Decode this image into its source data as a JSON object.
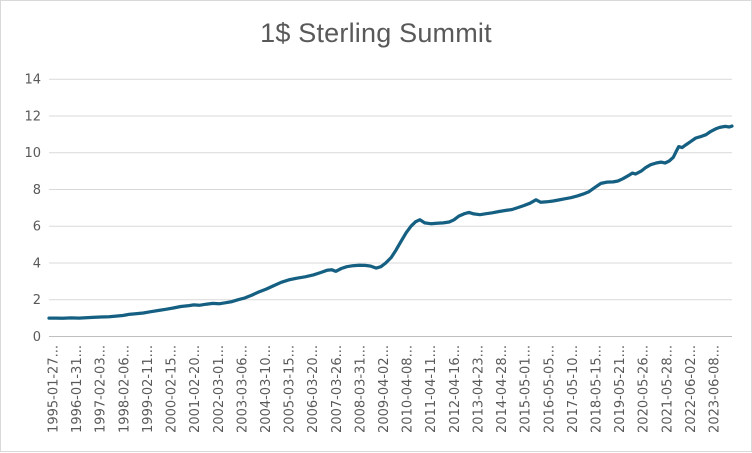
{
  "chart_data": {
    "type": "line",
    "title": "1$ Sterling Summit",
    "xlabel": "",
    "ylabel": "",
    "ylim": [
      0,
      14
    ],
    "y_ticks": [
      0,
      2,
      4,
      6,
      8,
      10,
      12,
      14
    ],
    "grid": "horizontal",
    "legend": "none",
    "x_tick_rotation": -90,
    "x_tick_labels": [
      "1995-01-27...",
      "1996-01-31...",
      "1997-02-03...",
      "1998-02-06...",
      "1999-02-11...",
      "2000-02-15...",
      "2001-02-20...",
      "2002-03-01...",
      "2003-03-06...",
      "2004-03-10...",
      "2005-03-15...",
      "2006-03-20...",
      "2007-03-26...",
      "2008-03-31...",
      "2009-04-02...",
      "2010-04-08...",
      "2011-04-11...",
      "2012-04-16...",
      "2013-04-23...",
      "2014-04-28...",
      "2015-05-01...",
      "2016-05-05...",
      "2017-05-10...",
      "2018-05-15...",
      "2019-05-21...",
      "2020-05-26...",
      "2021-05-28...",
      "2022-06-02...",
      "2023-06-08..."
    ],
    "colors": {
      "line": "#156082",
      "gridline": "#D9D9D9",
      "axis_line": "#BFBFBF",
      "tick_label": "#595959",
      "title": "#595959",
      "background": "#FFFFFF",
      "frame_border": "#D9D9D9"
    },
    "series": [
      {
        "name": "1$ Sterling Summit",
        "color": "#156082",
        "points": [
          [
            0,
            1
          ],
          [
            0.01,
            1
          ],
          [
            0.02,
            0.99
          ],
          [
            0.032,
            1.01
          ],
          [
            0.044,
            1
          ],
          [
            0.054,
            1.02
          ],
          [
            0.064,
            1.04
          ],
          [
            0.076,
            1.06
          ],
          [
            0.088,
            1.08
          ],
          [
            0.098,
            1.11
          ],
          [
            0.108,
            1.14
          ],
          [
            0.117,
            1.2
          ],
          [
            0.127,
            1.24
          ],
          [
            0.138,
            1.28
          ],
          [
            0.149,
            1.35
          ],
          [
            0.161,
            1.42
          ],
          [
            0.171,
            1.48
          ],
          [
            0.182,
            1.55
          ],
          [
            0.193,
            1.63
          ],
          [
            0.205,
            1.68
          ],
          [
            0.212,
            1.72
          ],
          [
            0.22,
            1.7
          ],
          [
            0.23,
            1.76
          ],
          [
            0.24,
            1.8
          ],
          [
            0.249,
            1.78
          ],
          [
            0.259,
            1.84
          ],
          [
            0.268,
            1.9
          ],
          [
            0.277,
            2
          ],
          [
            0.287,
            2.1
          ],
          [
            0.297,
            2.25
          ],
          [
            0.307,
            2.42
          ],
          [
            0.318,
            2.58
          ],
          [
            0.328,
            2.75
          ],
          [
            0.34,
            2.95
          ],
          [
            0.351,
            3.08
          ],
          [
            0.363,
            3.17
          ],
          [
            0.375,
            3.25
          ],
          [
            0.387,
            3.35
          ],
          [
            0.398,
            3.48
          ],
          [
            0.407,
            3.6
          ],
          [
            0.414,
            3.63
          ],
          [
            0.42,
            3.55
          ],
          [
            0.428,
            3.7
          ],
          [
            0.436,
            3.8
          ],
          [
            0.445,
            3.85
          ],
          [
            0.454,
            3.88
          ],
          [
            0.463,
            3.87
          ],
          [
            0.471,
            3.83
          ],
          [
            0.479,
            3.72
          ],
          [
            0.486,
            3.8
          ],
          [
            0.493,
            4
          ],
          [
            0.501,
            4.3
          ],
          [
            0.508,
            4.7
          ],
          [
            0.515,
            5.15
          ],
          [
            0.523,
            5.65
          ],
          [
            0.53,
            6
          ],
          [
            0.537,
            6.25
          ],
          [
            0.543,
            6.35
          ],
          [
            0.55,
            6.18
          ],
          [
            0.559,
            6.14
          ],
          [
            0.568,
            6.16
          ],
          [
            0.577,
            6.18
          ],
          [
            0.586,
            6.23
          ],
          [
            0.593,
            6.35
          ],
          [
            0.6,
            6.55
          ],
          [
            0.608,
            6.68
          ],
          [
            0.615,
            6.75
          ],
          [
            0.622,
            6.67
          ],
          [
            0.631,
            6.63
          ],
          [
            0.64,
            6.68
          ],
          [
            0.649,
            6.73
          ],
          [
            0.659,
            6.8
          ],
          [
            0.669,
            6.86
          ],
          [
            0.678,
            6.91
          ],
          [
            0.687,
            7.02
          ],
          [
            0.695,
            7.12
          ],
          [
            0.704,
            7.25
          ],
          [
            0.713,
            7.44
          ],
          [
            0.72,
            7.3
          ],
          [
            0.729,
            7.33
          ],
          [
            0.738,
            7.37
          ],
          [
            0.747,
            7.43
          ],
          [
            0.755,
            7.49
          ],
          [
            0.764,
            7.55
          ],
          [
            0.773,
            7.64
          ],
          [
            0.782,
            7.75
          ],
          [
            0.79,
            7.87
          ],
          [
            0.799,
            8.1
          ],
          [
            0.808,
            8.33
          ],
          [
            0.817,
            8.4
          ],
          [
            0.826,
            8.41
          ],
          [
            0.833,
            8.46
          ],
          [
            0.84,
            8.58
          ],
          [
            0.848,
            8.75
          ],
          [
            0.854,
            8.89
          ],
          [
            0.859,
            8.84
          ],
          [
            0.867,
            9
          ],
          [
            0.874,
            9.2
          ],
          [
            0.881,
            9.35
          ],
          [
            0.889,
            9.44
          ],
          [
            0.896,
            9.49
          ],
          [
            0.902,
            9.44
          ],
          [
            0.908,
            9.55
          ],
          [
            0.914,
            9.75
          ],
          [
            0.918,
            10.05
          ],
          [
            0.922,
            10.33
          ],
          [
            0.927,
            10.28
          ],
          [
            0.933,
            10.44
          ],
          [
            0.94,
            10.62
          ],
          [
            0.947,
            10.8
          ],
          [
            0.955,
            10.89
          ],
          [
            0.962,
            10.98
          ],
          [
            0.969,
            11.16
          ],
          [
            0.977,
            11.31
          ],
          [
            0.982,
            11.38
          ],
          [
            0.99,
            11.43
          ],
          [
            0.996,
            11.4
          ],
          [
            1,
            11.45
          ]
        ]
      }
    ]
  }
}
